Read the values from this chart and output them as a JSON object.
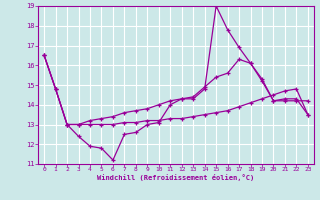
{
  "xlabel": "Windchill (Refroidissement éolien,°C)",
  "xlim": [
    -0.5,
    23.5
  ],
  "ylim": [
    11,
    19
  ],
  "yticks": [
    11,
    12,
    13,
    14,
    15,
    16,
    17,
    18,
    19
  ],
  "xticks": [
    0,
    1,
    2,
    3,
    4,
    5,
    6,
    7,
    8,
    9,
    10,
    11,
    12,
    13,
    14,
    15,
    16,
    17,
    18,
    19,
    20,
    21,
    22,
    23
  ],
  "background_color": "#cce8e8",
  "line_color": "#990099",
  "grid_color": "#ffffff",
  "line1_x": [
    0,
    1,
    2,
    3,
    4,
    5,
    6,
    7,
    8,
    9,
    10,
    11,
    12,
    13,
    14,
    15,
    16,
    17,
    18,
    19,
    20,
    21,
    22,
    23
  ],
  "line1_y": [
    16.5,
    14.8,
    13.0,
    12.4,
    11.9,
    11.8,
    11.2,
    12.5,
    12.6,
    13.0,
    13.1,
    14.0,
    14.3,
    14.3,
    14.8,
    19.0,
    17.8,
    16.9,
    16.1,
    15.2,
    14.2,
    14.2,
    14.2,
    14.2
  ],
  "line2_x": [
    0,
    1,
    2,
    3,
    4,
    5,
    6,
    7,
    8,
    9,
    10,
    11,
    12,
    13,
    14,
    15,
    16,
    17,
    18,
    19,
    20,
    21,
    22,
    23
  ],
  "line2_y": [
    16.5,
    14.8,
    13.0,
    13.0,
    13.2,
    13.3,
    13.4,
    13.6,
    13.7,
    13.8,
    14.0,
    14.2,
    14.3,
    14.4,
    14.9,
    15.4,
    15.6,
    16.3,
    16.1,
    15.3,
    14.2,
    14.3,
    14.3,
    13.5
  ],
  "line3_x": [
    0,
    1,
    2,
    3,
    4,
    5,
    6,
    7,
    8,
    9,
    10,
    11,
    12,
    13,
    14,
    15,
    16,
    17,
    18,
    19,
    20,
    21,
    22,
    23
  ],
  "line3_y": [
    16.5,
    14.8,
    13.0,
    13.0,
    13.0,
    13.0,
    13.0,
    13.1,
    13.1,
    13.2,
    13.2,
    13.3,
    13.3,
    13.4,
    13.5,
    13.6,
    13.7,
    13.9,
    14.1,
    14.3,
    14.5,
    14.7,
    14.8,
    13.5
  ]
}
